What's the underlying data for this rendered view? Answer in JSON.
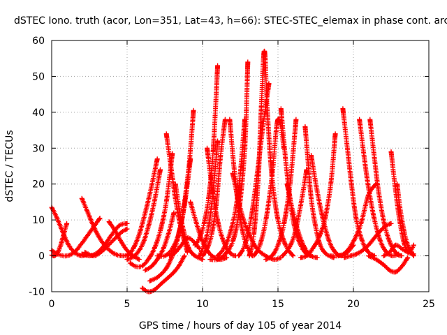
{
  "chart_data": {
    "type": "scatter",
    "title": "dSTEC Iono. truth (acor, Lon=351, Lat=43, h=66): STEC-STEC_elemax in phase cont. arc",
    "xlabel": "GPS time / hours of day 105 of year 2014",
    "ylabel": "dSTEC  / TECUs",
    "xlim": [
      0,
      25
    ],
    "ylim": [
      -10,
      60
    ],
    "xticks": [
      0,
      5,
      10,
      15,
      20,
      25
    ],
    "yticks": [
      -10,
      0,
      10,
      20,
      30,
      40,
      50,
      60
    ],
    "grid": true,
    "marker": "+",
    "color": "#ff0000",
    "arcs": [
      {
        "x": [
          0.0,
          0.3,
          0.6,
          0.9,
          1.2,
          1.6,
          2.0,
          2.4
        ],
        "y": [
          13.5,
          11.0,
          8.0,
          5.0,
          2.5,
          0.7,
          0.0,
          0.5
        ]
      },
      {
        "x": [
          0.0,
          0.2,
          0.4,
          0.6,
          0.8,
          1.0
        ],
        "y": [
          0.2,
          0.0,
          1.0,
          3.0,
          6.0,
          9.0
        ]
      },
      {
        "x": [
          0.0,
          0.5,
          1.0,
          1.5,
          2.0,
          2.6,
          3.2
        ],
        "y": [
          1.5,
          0.3,
          0.0,
          1.0,
          3.5,
          7.0,
          10.5
        ]
      },
      {
        "x": [
          2.0,
          2.3,
          2.7,
          3.1,
          3.6,
          4.2,
          4.8,
          5.2
        ],
        "y": [
          16.0,
          13.0,
          9.0,
          5.5,
          2.5,
          0.5,
          0.0,
          0.7
        ]
      },
      {
        "x": [
          2.0,
          2.5,
          3.0,
          3.5,
          4.0,
          4.5,
          5.0
        ],
        "y": [
          0.5,
          0.0,
          0.8,
          3.0,
          6.0,
          8.5,
          9.0
        ]
      },
      {
        "x": [
          2.2,
          2.8,
          3.4,
          4.0,
          4.6,
          5.0
        ],
        "y": [
          1.0,
          0.0,
          1.5,
          4.0,
          6.5,
          7.5
        ]
      },
      {
        "x": [
          3.8,
          4.2,
          4.6,
          5.0,
          5.4,
          5.8
        ],
        "y": [
          9.5,
          7.0,
          4.0,
          1.5,
          0.0,
          -1.0
        ]
      },
      {
        "x": [
          5.2,
          5.6,
          6.0,
          6.4,
          6.8,
          7.2,
          7.6,
          8.0
        ],
        "y": [
          -2.0,
          -3.0,
          -2.8,
          -1.0,
          2.0,
          7.0,
          15.0,
          28.5
        ]
      },
      {
        "x": [
          5.0,
          5.5,
          6.0,
          6.4,
          6.8,
          7.2
        ],
        "y": [
          -1.0,
          0.0,
          3.0,
          8.0,
          15.0,
          24.0
        ]
      },
      {
        "x": [
          5.0,
          5.4,
          5.8,
          6.2,
          6.6,
          7.0
        ],
        "y": [
          0.0,
          2.0,
          6.0,
          12.0,
          19.0,
          27.0
        ]
      },
      {
        "x": [
          6.0,
          6.4,
          6.8,
          7.2,
          7.6,
          8.0,
          8.4,
          8.8
        ],
        "y": [
          -9.0,
          -10.0,
          -9.5,
          -8.0,
          -6.5,
          -5.0,
          -3.0,
          0.0
        ]
      },
      {
        "x": [
          6.2,
          6.6,
          7.0,
          7.4,
          7.8,
          8.1
        ],
        "y": [
          -4.0,
          -3.0,
          -1.0,
          2.0,
          7.0,
          12.0
        ]
      },
      {
        "x": [
          6.5,
          7.0,
          7.5,
          7.9,
          8.3,
          8.7,
          9.1,
          9.4
        ],
        "y": [
          -7.0,
          -6.0,
          -4.0,
          -1.0,
          4.0,
          12.0,
          25.0,
          40.5
        ]
      },
      {
        "x": [
          7.0,
          7.5,
          8.0,
          8.4,
          8.8,
          9.2
        ],
        "y": [
          0.0,
          0.0,
          2.0,
          6.0,
          14.0,
          27.0
        ]
      },
      {
        "x": [
          7.6,
          7.9,
          8.2,
          8.5,
          8.8,
          9.0
        ],
        "y": [
          34.0,
          25.0,
          16.0,
          9.0,
          4.0,
          1.0
        ]
      },
      {
        "x": [
          8.2,
          8.5,
          8.8,
          9.1,
          9.5,
          10.0
        ],
        "y": [
          20.0,
          12.0,
          6.0,
          2.0,
          0.0,
          -1.0
        ]
      },
      {
        "x": [
          7.8,
          8.2,
          8.6,
          9.0,
          9.4,
          9.8
        ],
        "y": [
          0.0,
          1.0,
          3.0,
          5.0,
          4.0,
          2.0
        ]
      },
      {
        "x": [
          9.2,
          9.6,
          10.0,
          10.4,
          10.8,
          11.2,
          11.6
        ],
        "y": [
          15.0,
          9.0,
          4.0,
          1.0,
          -0.5,
          -1.0,
          -0.5
        ]
      },
      {
        "x": [
          9.5,
          9.8,
          10.1,
          10.4,
          10.7,
          11.0
        ],
        "y": [
          3.0,
          5.0,
          9.0,
          16.0,
          29.0,
          53.0
        ]
      },
      {
        "x": [
          9.8,
          10.1,
          10.4,
          10.7,
          11.0
        ],
        "y": [
          0.0,
          3.0,
          8.0,
          18.0,
          32.0
        ]
      },
      {
        "x": [
          10.0,
          10.3,
          10.6,
          10.9,
          11.2,
          11.5
        ],
        "y": [
          0.0,
          2.0,
          6.0,
          14.0,
          28.0,
          38.0
        ]
      },
      {
        "x": [
          10.3,
          10.7,
          11.1,
          11.5,
          11.9,
          12.2
        ],
        "y": [
          30.0,
          17.0,
          8.0,
          3.0,
          0.5,
          0.0
        ]
      },
      {
        "x": [
          10.5,
          11.0,
          11.5,
          12.0,
          12.4,
          12.8,
          13.0
        ],
        "y": [
          -1.0,
          -1.0,
          0.5,
          4.0,
          12.0,
          30.0,
          54.0
        ]
      },
      {
        "x": [
          11.0,
          11.4,
          11.8,
          12.2,
          12.5,
          12.8
        ],
        "y": [
          0.0,
          2.0,
          6.0,
          13.0,
          23.0,
          38.0
        ]
      },
      {
        "x": [
          11.8,
          12.1,
          12.4,
          12.7,
          13.0,
          13.3
        ],
        "y": [
          38.0,
          24.0,
          13.0,
          6.0,
          2.0,
          0.0
        ]
      },
      {
        "x": [
          12.0,
          12.4,
          12.8,
          13.2,
          13.6,
          14.0,
          14.4,
          14.8,
          15.2
        ],
        "y": [
          23.0,
          15.0,
          9.0,
          5.0,
          2.0,
          0.5,
          -0.5,
          -1.0,
          -0.5
        ]
      },
      {
        "x": [
          12.4,
          12.8,
          13.2,
          13.6,
          14.0,
          14.4
        ],
        "y": [
          0.0,
          3.0,
          10.0,
          22.0,
          36.0,
          48.0
        ]
      },
      {
        "x": [
          13.1,
          13.4,
          13.7,
          13.9,
          14.1,
          14.3,
          14.6,
          15.0,
          15.5,
          16.0
        ],
        "y": [
          0.0,
          6.0,
          22.0,
          42.0,
          57.0,
          40.0,
          22.0,
          10.0,
          3.0,
          0.0
        ]
      },
      {
        "x": [
          13.4,
          13.8,
          14.2,
          14.6,
          15.0,
          15.4
        ],
        "y": [
          0.0,
          3.0,
          10.0,
          22.0,
          38.0,
          30.0
        ]
      },
      {
        "x": [
          14.2,
          14.6,
          15.0,
          15.4,
          15.8,
          16.2
        ],
        "y": [
          -1.0,
          0.0,
          3.0,
          9.0,
          20.0,
          38.0
        ]
      },
      {
        "x": [
          15.2,
          15.5,
          15.8,
          16.1,
          16.5,
          16.9,
          17.2
        ],
        "y": [
          41.0,
          27.0,
          16.0,
          8.0,
          3.0,
          0.5,
          0.0
        ]
      },
      {
        "x": [
          15.3,
          15.7,
          16.1,
          16.5,
          16.9
        ],
        "y": [
          0.0,
          2.0,
          6.0,
          14.0,
          24.0
        ]
      },
      {
        "x": [
          15.6,
          16.0,
          16.4,
          16.8,
          17.2,
          17.6
        ],
        "y": [
          20.0,
          12.0,
          6.0,
          2.0,
          0.0,
          -0.5
        ]
      },
      {
        "x": [
          16.8,
          17.0,
          17.2,
          17.5,
          17.8,
          18.2,
          18.7
        ],
        "y": [
          36.0,
          26.0,
          16.0,
          8.0,
          3.0,
          0.5,
          -0.5
        ]
      },
      {
        "x": [
          16.5,
          16.9,
          17.3,
          17.7,
          18.1,
          18.5,
          18.8
        ],
        "y": [
          -0.5,
          0.0,
          2.0,
          5.0,
          10.0,
          20.0,
          34.0
        ]
      },
      {
        "x": [
          17.2,
          17.6,
          18.0,
          18.4,
          18.8,
          19.2,
          19.6,
          20.0
        ],
        "y": [
          28.0,
          18.0,
          10.0,
          4.0,
          1.0,
          0.0,
          1.0,
          3.0
        ]
      },
      {
        "x": [
          19.3,
          19.6,
          19.9,
          20.2,
          20.6,
          21.0,
          21.4
        ],
        "y": [
          41.0,
          30.0,
          19.0,
          10.0,
          4.0,
          1.0,
          0.0
        ]
      },
      {
        "x": [
          18.5,
          19.0,
          19.5,
          20.0,
          20.5,
          21.0,
          21.5
        ],
        "y": [
          0.0,
          0.0,
          1.0,
          4.0,
          9.0,
          17.0,
          20.0
        ]
      },
      {
        "x": [
          19.4,
          19.8,
          20.2,
          20.6,
          21.0,
          21.4,
          21.8,
          22.2,
          22.5
        ],
        "y": [
          -0.5,
          0.0,
          0.5,
          1.5,
          3.0,
          5.0,
          7.0,
          8.5,
          9.0
        ]
      },
      {
        "x": [
          20.4,
          20.7,
          21.0,
          21.4,
          21.8,
          22.2,
          22.6,
          23.0
        ],
        "y": [
          38.0,
          28.0,
          19.0,
          10.0,
          4.0,
          1.0,
          0.0,
          0.5
        ]
      },
      {
        "x": [
          21.1,
          21.4,
          21.7,
          22.1,
          22.5,
          22.9,
          23.2
        ],
        "y": [
          38.0,
          27.0,
          17.0,
          8.0,
          3.0,
          0.5,
          0.0
        ]
      },
      {
        "x": [
          21.0,
          21.5,
          22.0,
          22.4,
          22.8,
          23.2,
          23.6
        ],
        "y": [
          0.0,
          -1.0,
          -2.5,
          -4.0,
          -4.5,
          -3.0,
          -0.5
        ]
      },
      {
        "x": [
          22.5,
          22.8,
          23.1,
          23.4,
          23.7,
          24.0
        ],
        "y": [
          29.0,
          18.0,
          9.0,
          3.0,
          1.0,
          3.0
        ]
      },
      {
        "x": [
          22.9,
          23.1,
          23.4,
          23.7,
          24.0
        ],
        "y": [
          20.0,
          13.0,
          6.0,
          2.0,
          0.0
        ]
      },
      {
        "x": [
          22.0,
          22.4,
          22.8,
          23.2,
          23.6,
          24.0
        ],
        "y": [
          0.0,
          1.0,
          3.0,
          2.0,
          1.0,
          0.5
        ]
      }
    ]
  }
}
